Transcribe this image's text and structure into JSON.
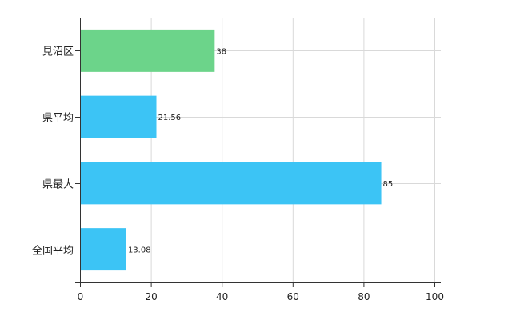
{
  "chart_data": {
    "type": "bar",
    "orientation": "horizontal",
    "categories": [
      "見沼区",
      "県平均",
      "県最大",
      "全国平均"
    ],
    "values": [
      38,
      21.56,
      85,
      13.08
    ],
    "value_labels": [
      "38",
      "21.56",
      "85",
      "13.08"
    ],
    "colors": [
      "#6cd48a",
      "#3cc4f5",
      "#3cc4f5",
      "#3cc4f5"
    ],
    "xlim": [
      0,
      100
    ],
    "xticks": [
      0,
      20,
      40,
      60,
      80,
      100
    ],
    "xtick_labels": [
      "0",
      "20",
      "40",
      "60",
      "80",
      "100"
    ],
    "grid": true,
    "title": "",
    "xlabel": "",
    "ylabel": ""
  }
}
